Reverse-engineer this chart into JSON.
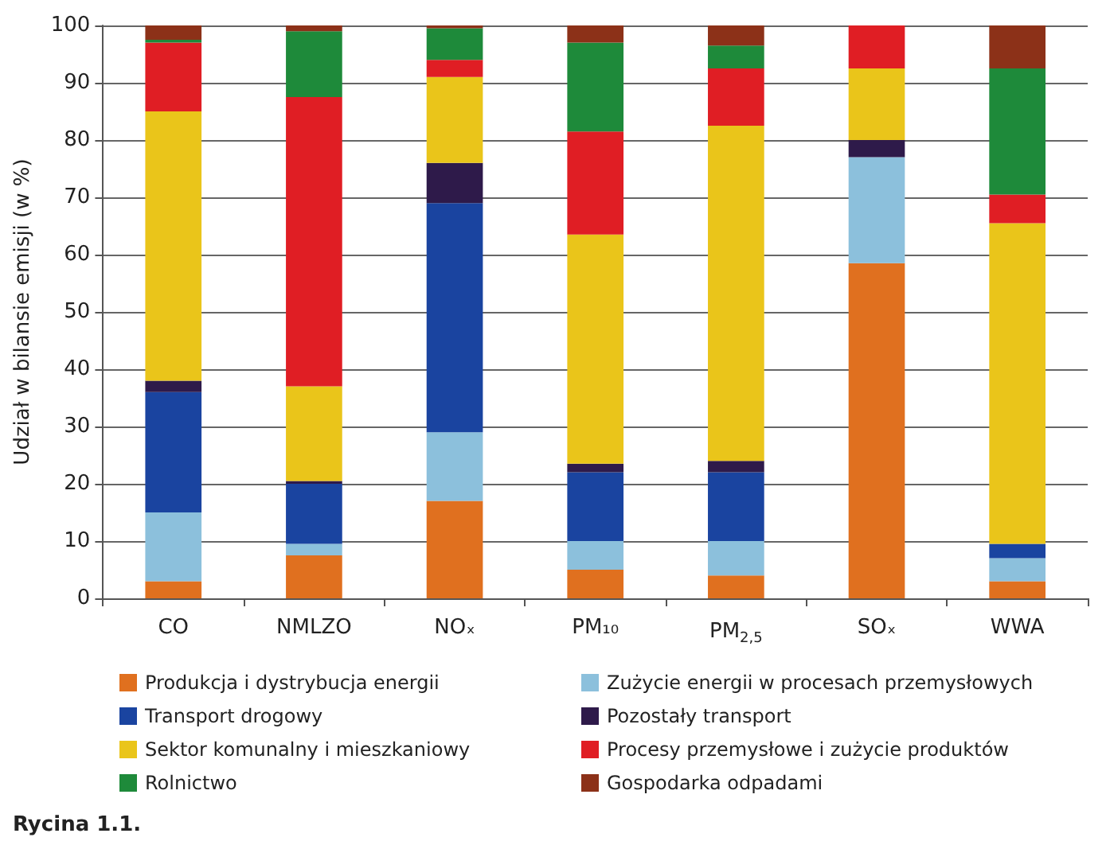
{
  "chart_data": {
    "type": "bar",
    "stacked": true,
    "ylabel": "Udział w bilansie emisji (w %)",
    "categories": [
      "CO",
      "NMLZO",
      "NOₓ",
      "PM₁₀",
      "PM$_{2,5}$",
      "SOₓ",
      "WWA"
    ],
    "series": [
      {
        "name": "Produkcja i dystrybucja energii",
        "color": "#e0701f",
        "values": [
          3,
          7.5,
          17,
          5,
          4,
          58.5,
          3
        ]
      },
      {
        "name": "Zużycie energii w procesach przemysłowych",
        "color": "#8cc0dc",
        "values": [
          12,
          2,
          12,
          5,
          6,
          18.5,
          4
        ]
      },
      {
        "name": "Transport drogowy",
        "color": "#1a44a0",
        "values": [
          21,
          10.5,
          40,
          12,
          12,
          0,
          2.5
        ]
      },
      {
        "name": "Pozostały transport",
        "color": "#2e1a4a",
        "values": [
          2,
          0.5,
          7,
          1.5,
          2,
          3,
          0
        ]
      },
      {
        "name": "Sektor komunalny i mieszkaniowy",
        "color": "#eac51a",
        "values": [
          47,
          16.5,
          15,
          40,
          58.5,
          12.5,
          56
        ]
      },
      {
        "name": "Procesy przemysłowe i zużycie produktów",
        "color": "#e01e24",
        "values": [
          12,
          50.5,
          3,
          18,
          10,
          7.5,
          5
        ]
      },
      {
        "name": "Rolnictwo",
        "color": "#1e8a3a",
        "values": [
          0.5,
          11.5,
          5.5,
          15.5,
          4,
          0,
          22
        ]
      },
      {
        "name": "Gospodarka odpadami",
        "color": "#8c3118",
        "values": [
          2.5,
          1,
          0.5,
          3,
          3.5,
          0,
          7.5
        ]
      }
    ],
    "ylim": [
      0,
      100
    ],
    "yticks": [
      0,
      10,
      20,
      30,
      40,
      50,
      60,
      70,
      80,
      90,
      100
    ],
    "grid": "y",
    "legend": "bottom",
    "annotations": [
      "Rycina 1.1."
    ]
  }
}
